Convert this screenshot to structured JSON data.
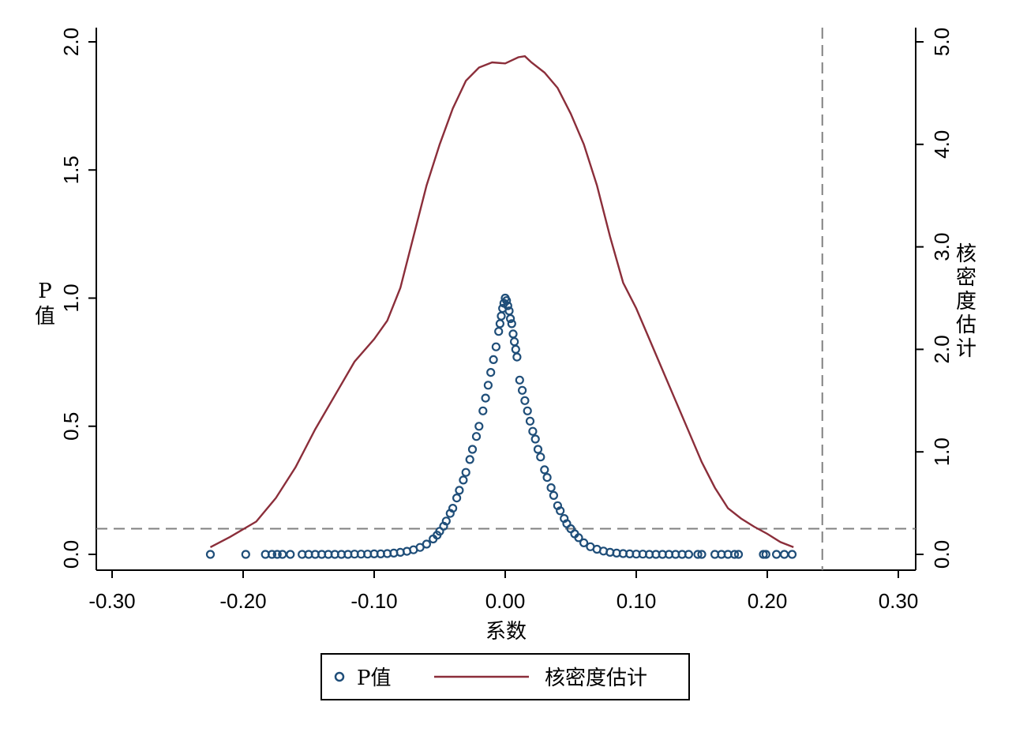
{
  "chart_data": {
    "type": "scatter",
    "xlabel": "系数",
    "ylabel_left": "P值",
    "ylabel_right": "核密度估计",
    "x_ticks": [
      "-0.30",
      "-0.20",
      "-0.10",
      "0.00",
      "0.10",
      "0.20",
      "0.30"
    ],
    "y_left_ticks": [
      "0.0",
      "0.5",
      "1.0",
      "1.5",
      "2.0"
    ],
    "y_right_ticks": [
      "0.0",
      "1.0",
      "2.0",
      "3.0",
      "4.0",
      "5.0"
    ],
    "xlim": [
      -0.3,
      0.3
    ],
    "ylim_left": [
      0,
      2.0
    ],
    "ylim_right": [
      0,
      5.0
    ],
    "reference_lines": {
      "horizontal_p": 0.1,
      "vertical_x": 0.242
    },
    "series": [
      {
        "name": "P值",
        "kind": "scatter",
        "color": "#1f4e79",
        "points": [
          [
            -0.225,
            0.0
          ],
          [
            -0.198,
            0.0
          ],
          [
            -0.183,
            0.0
          ],
          [
            -0.178,
            0.0
          ],
          [
            -0.174,
            0.0
          ],
          [
            -0.17,
            0.0
          ],
          [
            -0.164,
            0.0
          ],
          [
            -0.155,
            0.0
          ],
          [
            -0.15,
            0.0
          ],
          [
            -0.145,
            0.0
          ],
          [
            -0.14,
            0.0
          ],
          [
            -0.135,
            0.0
          ],
          [
            -0.13,
            0.0
          ],
          [
            -0.125,
            0.0
          ],
          [
            -0.12,
            0.0
          ],
          [
            -0.115,
            0.001
          ],
          [
            -0.11,
            0.001
          ],
          [
            -0.105,
            0.001
          ],
          [
            -0.1,
            0.002
          ],
          [
            -0.095,
            0.002
          ],
          [
            -0.09,
            0.003
          ],
          [
            -0.085,
            0.005
          ],
          [
            -0.08,
            0.008
          ],
          [
            -0.075,
            0.012
          ],
          [
            -0.07,
            0.018
          ],
          [
            -0.065,
            0.027
          ],
          [
            -0.06,
            0.04
          ],
          [
            -0.055,
            0.06
          ],
          [
            -0.052,
            0.075
          ],
          [
            -0.05,
            0.09
          ],
          [
            -0.047,
            0.11
          ],
          [
            -0.045,
            0.13
          ],
          [
            -0.042,
            0.16
          ],
          [
            -0.04,
            0.18
          ],
          [
            -0.037,
            0.22
          ],
          [
            -0.035,
            0.25
          ],
          [
            -0.032,
            0.29
          ],
          [
            -0.03,
            0.32
          ],
          [
            -0.027,
            0.37
          ],
          [
            -0.025,
            0.41
          ],
          [
            -0.022,
            0.46
          ],
          [
            -0.02,
            0.5
          ],
          [
            -0.017,
            0.56
          ],
          [
            -0.015,
            0.61
          ],
          [
            -0.013,
            0.66
          ],
          [
            -0.011,
            0.71
          ],
          [
            -0.009,
            0.76
          ],
          [
            -0.007,
            0.81
          ],
          [
            -0.005,
            0.87
          ],
          [
            -0.004,
            0.9
          ],
          [
            -0.003,
            0.93
          ],
          [
            -0.002,
            0.96
          ],
          [
            -0.001,
            0.98
          ],
          [
            0.0,
            1.0
          ],
          [
            0.001,
            0.99
          ],
          [
            0.002,
            0.97
          ],
          [
            0.003,
            0.95
          ],
          [
            0.004,
            0.92
          ],
          [
            0.005,
            0.9
          ],
          [
            0.006,
            0.86
          ],
          [
            0.007,
            0.83
          ],
          [
            0.008,
            0.8
          ],
          [
            0.009,
            0.77
          ],
          [
            0.011,
            0.68
          ],
          [
            0.013,
            0.64
          ],
          [
            0.015,
            0.6
          ],
          [
            0.017,
            0.56
          ],
          [
            0.019,
            0.52
          ],
          [
            0.021,
            0.48
          ],
          [
            0.023,
            0.45
          ],
          [
            0.025,
            0.41
          ],
          [
            0.027,
            0.38
          ],
          [
            0.03,
            0.33
          ],
          [
            0.032,
            0.3
          ],
          [
            0.035,
            0.26
          ],
          [
            0.037,
            0.23
          ],
          [
            0.04,
            0.19
          ],
          [
            0.042,
            0.17
          ],
          [
            0.045,
            0.14
          ],
          [
            0.047,
            0.12
          ],
          [
            0.05,
            0.1
          ],
          [
            0.053,
            0.08
          ],
          [
            0.056,
            0.065
          ],
          [
            0.06,
            0.045
          ],
          [
            0.065,
            0.03
          ],
          [
            0.07,
            0.02
          ],
          [
            0.075,
            0.013
          ],
          [
            0.08,
            0.008
          ],
          [
            0.085,
            0.005
          ],
          [
            0.09,
            0.003
          ],
          [
            0.095,
            0.002
          ],
          [
            0.1,
            0.001
          ],
          [
            0.105,
            0.001
          ],
          [
            0.11,
            0.0
          ],
          [
            0.115,
            0.0
          ],
          [
            0.12,
            0.0
          ],
          [
            0.125,
            0.0
          ],
          [
            0.13,
            0.0
          ],
          [
            0.135,
            0.0
          ],
          [
            0.14,
            0.0
          ],
          [
            0.147,
            0.0
          ],
          [
            0.15,
            0.0
          ],
          [
            0.16,
            0.0
          ],
          [
            0.165,
            0.0
          ],
          [
            0.17,
            0.0
          ],
          [
            0.175,
            0.0
          ],
          [
            0.178,
            0.0
          ],
          [
            0.197,
            0.0
          ],
          [
            0.199,
            0.0
          ],
          [
            0.207,
            0.0
          ],
          [
            0.213,
            0.0
          ],
          [
            0.219,
            0.0
          ]
        ]
      },
      {
        "name": "核密度估计",
        "kind": "line",
        "axis": "right",
        "color": "#8b2e3a",
        "points": [
          [
            -0.225,
            0.07
          ],
          [
            -0.21,
            0.17
          ],
          [
            -0.19,
            0.32
          ],
          [
            -0.175,
            0.55
          ],
          [
            -0.16,
            0.85
          ],
          [
            -0.145,
            1.22
          ],
          [
            -0.13,
            1.55
          ],
          [
            -0.115,
            1.88
          ],
          [
            -0.1,
            2.1
          ],
          [
            -0.09,
            2.28
          ],
          [
            -0.08,
            2.6
          ],
          [
            -0.07,
            3.1
          ],
          [
            -0.06,
            3.6
          ],
          [
            -0.05,
            4.0
          ],
          [
            -0.04,
            4.35
          ],
          [
            -0.03,
            4.62
          ],
          [
            -0.02,
            4.75
          ],
          [
            -0.01,
            4.8
          ],
          [
            0.0,
            4.79
          ],
          [
            0.01,
            4.85
          ],
          [
            0.015,
            4.86
          ],
          [
            0.02,
            4.8
          ],
          [
            0.03,
            4.7
          ],
          [
            0.04,
            4.55
          ],
          [
            0.05,
            4.3
          ],
          [
            0.06,
            4.0
          ],
          [
            0.07,
            3.6
          ],
          [
            0.08,
            3.1
          ],
          [
            0.09,
            2.65
          ],
          [
            0.1,
            2.4
          ],
          [
            0.11,
            2.1
          ],
          [
            0.12,
            1.8
          ],
          [
            0.13,
            1.5
          ],
          [
            0.14,
            1.2
          ],
          [
            0.15,
            0.9
          ],
          [
            0.16,
            0.65
          ],
          [
            0.17,
            0.45
          ],
          [
            0.18,
            0.35
          ],
          [
            0.19,
            0.27
          ],
          [
            0.2,
            0.2
          ],
          [
            0.21,
            0.12
          ],
          [
            0.22,
            0.07
          ]
        ]
      }
    ],
    "legend": {
      "placement": "bottom-center",
      "entries": [
        {
          "label": "P值",
          "marker": "circle"
        },
        {
          "label": "核密度估计",
          "marker": "line"
        }
      ]
    }
  }
}
